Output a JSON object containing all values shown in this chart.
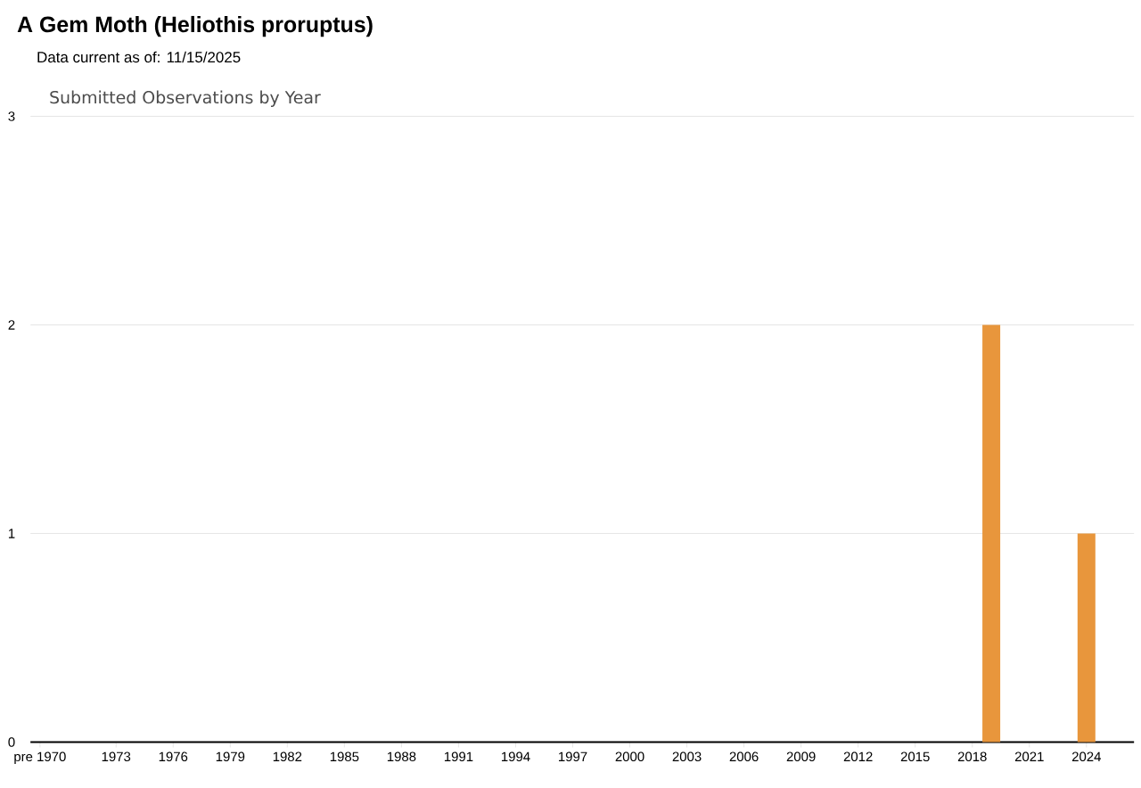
{
  "chart_data": {
    "type": "bar",
    "title": "A Gem Moth   (Heliothis proruptus)",
    "subtitle": "Data current as of: 11/15/2025",
    "annotations": [
      "Submitted Observations by Year"
    ],
    "categories": [
      "pre 1970",
      null,
      null,
      null,
      "1973",
      null,
      null,
      "1976",
      null,
      null,
      "1979",
      null,
      null,
      "1982",
      null,
      null,
      "1985",
      null,
      null,
      "1988",
      null,
      null,
      "1991",
      null,
      null,
      "1994",
      null,
      null,
      "1997",
      null,
      null,
      "2000",
      null,
      null,
      "2003",
      null,
      null,
      "2006",
      null,
      null,
      "2009",
      null,
      null,
      "2012",
      null,
      null,
      "2015",
      null,
      null,
      "2018",
      null,
      null,
      "2021",
      null,
      null,
      "2024",
      null,
      null
    ],
    "values": [
      0,
      0,
      0,
      0,
      0,
      0,
      0,
      0,
      0,
      0,
      0,
      0,
      0,
      0,
      0,
      0,
      0,
      0,
      0,
      0,
      0,
      0,
      0,
      0,
      0,
      0,
      0,
      0,
      0,
      0,
      0,
      0,
      0,
      0,
      0,
      0,
      0,
      0,
      0,
      0,
      0,
      0,
      0,
      0,
      0,
      0,
      0,
      0,
      0,
      0,
      2,
      0,
      0,
      0,
      0,
      1,
      0,
      0
    ],
    "color": "#e8963c",
    "ylim": [
      0,
      3
    ],
    "yticks": [
      0,
      1,
      2,
      3
    ],
    "grid": "y"
  }
}
